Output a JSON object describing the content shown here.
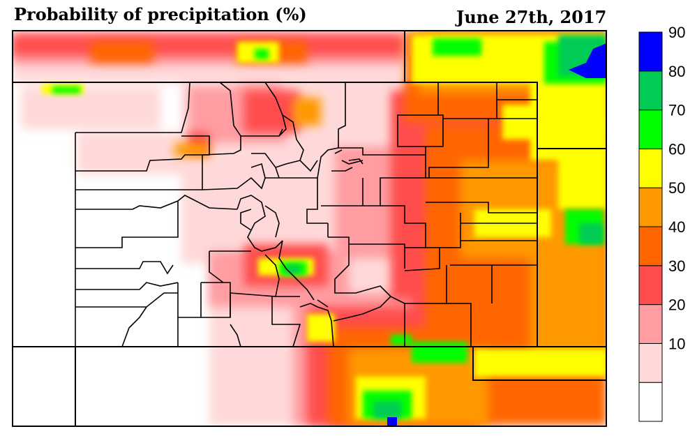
{
  "header": {
    "title": "Probability of precipitation (%)",
    "date": "June 27th, 2017"
  },
  "legend": {
    "bins": [
      {
        "label": "",
        "color": "#ffffff"
      },
      {
        "label": "10",
        "color": "#ffd9d9"
      },
      {
        "label": "20",
        "color": "#ff9da2"
      },
      {
        "label": "30",
        "color": "#ff4d4d"
      },
      {
        "label": "40",
        "color": "#ff6600"
      },
      {
        "label": "50",
        "color": "#ff9900"
      },
      {
        "label": "60",
        "color": "#ffff00"
      },
      {
        "label": "70",
        "color": "#00ff00"
      },
      {
        "label": "80",
        "color": "#00cc55"
      },
      {
        "label": "90",
        "color": "#0000ff"
      }
    ]
  }
}
